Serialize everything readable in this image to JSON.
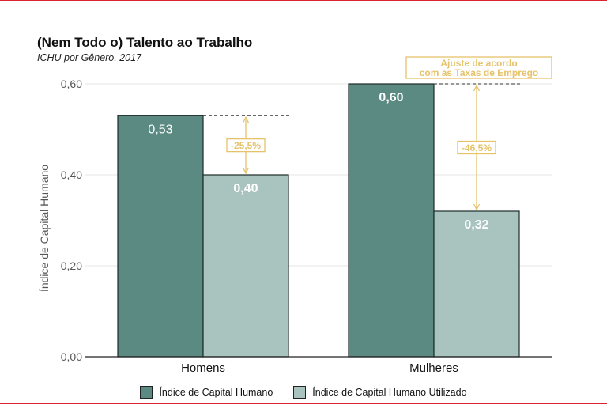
{
  "title": "(Nem Todo o) Talento ao Trabalho",
  "subtitle": "ICHU por Gênero, 2017",
  "colors": {
    "series1": "#5a8a82",
    "series2": "#a9c4bf",
    "annotation": "#e6c36b",
    "border": "#d8262c"
  },
  "chart_data": {
    "type": "bar",
    "title": "(Nem Todo o) Talento ao Trabalho",
    "subtitle": "ICHU por Gênero, 2017",
    "categories": [
      "Homens",
      "Mulheres"
    ],
    "series": [
      {
        "name": "Índice de Capital Humano",
        "values": [
          0.53,
          0.6
        ],
        "value_labels": [
          "0,53",
          "0,60"
        ]
      },
      {
        "name": "Índice de Capital Humano Utilizado",
        "values": [
          0.4,
          0.32
        ],
        "value_labels": [
          "0,40",
          "0,32"
        ]
      }
    ],
    "xlabel": "",
    "ylabel": "Índice de Capital Humano",
    "ylim": [
      0,
      0.6
    ],
    "yticks": [
      0,
      0.2,
      0.4,
      0.6
    ],
    "ytick_labels": [
      "0,00",
      "0,20",
      "0,40",
      "0,60"
    ],
    "grid": "horizontal",
    "legend": "bottom",
    "annotations": [
      {
        "category": "Homens",
        "text": "-25,5%"
      },
      {
        "category": "Mulheres",
        "text": "-46,5%"
      },
      {
        "text_lines": [
          "Ajuste de acordo",
          "com as Taxas de Emprego"
        ]
      }
    ]
  }
}
